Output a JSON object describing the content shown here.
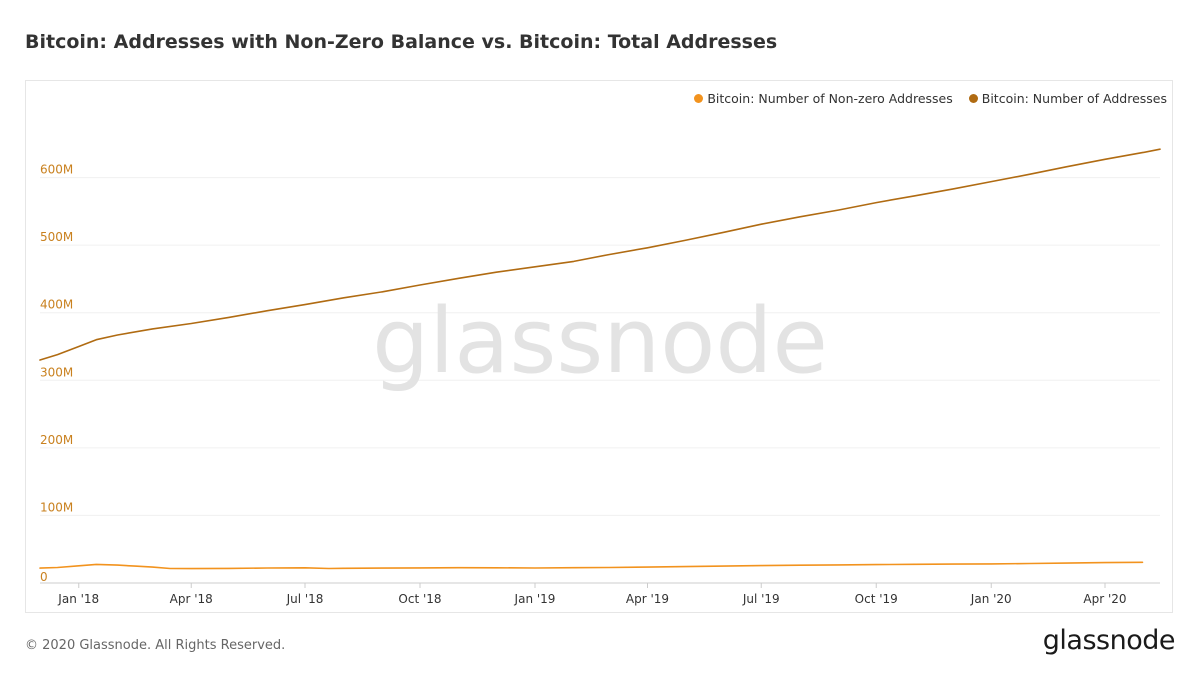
{
  "title": "Bitcoin: Addresses with Non-Zero Balance vs. Bitcoin: Total Addresses",
  "watermark": "glassnode",
  "footer": {
    "copyright": "© 2020 Glassnode. All Rights Reserved.",
    "brand": "glassnode"
  },
  "colors": {
    "nonzero": "#f2931e",
    "total": "#b06b12",
    "axis_label": "#c9811f",
    "grid": "#f0f0f0"
  },
  "chart_data": {
    "type": "line",
    "title": "Bitcoin: Addresses with Non-Zero Balance vs. Bitcoin: Total Addresses",
    "xlabel": "",
    "ylabel": "",
    "ylim": [
      0,
      700000000
    ],
    "yticks": [
      {
        "value": 0,
        "label": "0"
      },
      {
        "value": 100000000,
        "label": "100M"
      },
      {
        "value": 200000000,
        "label": "200M"
      },
      {
        "value": 300000000,
        "label": "300M"
      },
      {
        "value": 400000000,
        "label": "400M"
      },
      {
        "value": 500000000,
        "label": "500M"
      },
      {
        "value": 600000000,
        "label": "600M"
      }
    ],
    "xlim": [
      "2017-12-01",
      "2020-05-15"
    ],
    "xticks": [
      {
        "date": "2018-01-01",
        "label": "Jan '18"
      },
      {
        "date": "2018-04-01",
        "label": "Apr '18"
      },
      {
        "date": "2018-07-01",
        "label": "Jul '18"
      },
      {
        "date": "2018-10-01",
        "label": "Oct '18"
      },
      {
        "date": "2019-01-01",
        "label": "Jan '19"
      },
      {
        "date": "2019-04-01",
        "label": "Apr '19"
      },
      {
        "date": "2019-07-01",
        "label": "Jul '19"
      },
      {
        "date": "2019-10-01",
        "label": "Oct '19"
      },
      {
        "date": "2020-01-01",
        "label": "Jan '20"
      },
      {
        "date": "2020-04-01",
        "label": "Apr '20"
      }
    ],
    "legend_position": "top-right",
    "series": [
      {
        "name": "Bitcoin: Number of Non-zero Addresses",
        "color_key": "nonzero",
        "points": [
          [
            "2017-12-01",
            22000000
          ],
          [
            "2017-12-15",
            23000000
          ],
          [
            "2018-01-01",
            25500000
          ],
          [
            "2018-01-15",
            27500000
          ],
          [
            "2018-02-01",
            26500000
          ],
          [
            "2018-02-15",
            25000000
          ],
          [
            "2018-03-01",
            23500000
          ],
          [
            "2018-03-15",
            21500000
          ],
          [
            "2018-04-01",
            21300000
          ],
          [
            "2018-05-01",
            21600000
          ],
          [
            "2018-06-01",
            22200000
          ],
          [
            "2018-07-01",
            22500000
          ],
          [
            "2018-07-20",
            21500000
          ],
          [
            "2018-08-01",
            21700000
          ],
          [
            "2018-09-01",
            22000000
          ],
          [
            "2018-10-01",
            22400000
          ],
          [
            "2018-11-01",
            22600000
          ],
          [
            "2018-12-01",
            22500000
          ],
          [
            "2019-01-01",
            22200000
          ],
          [
            "2019-02-01",
            22600000
          ],
          [
            "2019-03-01",
            23000000
          ],
          [
            "2019-04-01",
            23600000
          ],
          [
            "2019-05-01",
            24300000
          ],
          [
            "2019-06-01",
            25000000
          ],
          [
            "2019-07-01",
            25700000
          ],
          [
            "2019-08-01",
            26400000
          ],
          [
            "2019-09-01",
            26800000
          ],
          [
            "2019-10-01",
            27200000
          ],
          [
            "2019-11-01",
            27700000
          ],
          [
            "2019-12-01",
            28000000
          ],
          [
            "2020-01-01",
            28300000
          ],
          [
            "2020-02-01",
            28800000
          ],
          [
            "2020-03-01",
            29400000
          ],
          [
            "2020-04-01",
            30200000
          ],
          [
            "2020-05-01",
            30600000
          ]
        ]
      },
      {
        "name": "Bitcoin: Number of Addresses",
        "color_key": "total",
        "points": [
          [
            "2017-12-01",
            330000000
          ],
          [
            "2017-12-15",
            338000000
          ],
          [
            "2018-01-01",
            350000000
          ],
          [
            "2018-01-15",
            360000000
          ],
          [
            "2018-02-01",
            367000000
          ],
          [
            "2018-03-01",
            376000000
          ],
          [
            "2018-04-01",
            384000000
          ],
          [
            "2018-05-01",
            393000000
          ],
          [
            "2018-06-01",
            403000000
          ],
          [
            "2018-07-01",
            412000000
          ],
          [
            "2018-08-01",
            422000000
          ],
          [
            "2018-09-01",
            431000000
          ],
          [
            "2018-10-01",
            441000000
          ],
          [
            "2018-11-01",
            451000000
          ],
          [
            "2018-12-01",
            460000000
          ],
          [
            "2019-01-01",
            468000000
          ],
          [
            "2019-02-01",
            476000000
          ],
          [
            "2019-03-01",
            486000000
          ],
          [
            "2019-04-01",
            496000000
          ],
          [
            "2019-05-01",
            507000000
          ],
          [
            "2019-06-01",
            519000000
          ],
          [
            "2019-07-01",
            531000000
          ],
          [
            "2019-08-01",
            542000000
          ],
          [
            "2019-09-01",
            552000000
          ],
          [
            "2019-10-01",
            563000000
          ],
          [
            "2019-11-01",
            573000000
          ],
          [
            "2019-12-01",
            583000000
          ],
          [
            "2020-01-01",
            594000000
          ],
          [
            "2020-02-01",
            605000000
          ],
          [
            "2020-03-01",
            616000000
          ],
          [
            "2020-04-01",
            627000000
          ],
          [
            "2020-05-01",
            637000000
          ],
          [
            "2020-05-15",
            642000000
          ]
        ]
      }
    ]
  }
}
